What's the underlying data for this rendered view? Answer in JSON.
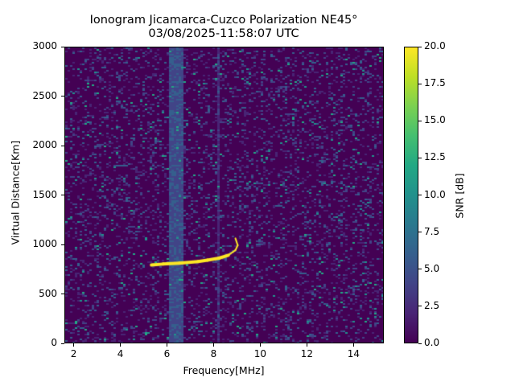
{
  "title_line1": "Ionogram Jicamarca-Cuzco Polarization NE45°",
  "title_line2": "03/08/2025-11:58:07 UTC",
  "x_axis": {
    "label": "Frequency[MHz]",
    "ticks": [
      "2",
      "4",
      "6",
      "8",
      "10",
      "12",
      "14"
    ],
    "range": [
      1.6,
      15.3
    ]
  },
  "y_axis": {
    "label": "Virtual Distance[Km]",
    "ticks": [
      "0",
      "500",
      "1000",
      "1500",
      "2000",
      "2500",
      "3000"
    ],
    "range": [
      0,
      3000
    ]
  },
  "colorbar": {
    "label": "SNR [dB]",
    "ticks": [
      "0.0",
      "2.5",
      "5.0",
      "7.5",
      "10.0",
      "12.5",
      "15.0",
      "17.5",
      "20.0"
    ],
    "range": [
      0,
      20
    ],
    "colormap": "viridis"
  },
  "chart_data": {
    "type": "heatmap",
    "title": "Ionogram Jicamarca-Cuzco Polarization NE45° 03/08/2025-11:58:07 UTC",
    "xlabel": "Frequency[MHz]",
    "ylabel": "Virtual Distance[Km]",
    "colorbar_label": "SNR [dB]",
    "xlim": [
      1.6,
      15.3
    ],
    "ylim": [
      0,
      3000
    ],
    "clim": [
      0,
      20
    ],
    "x_ticks": [
      2,
      4,
      6,
      8,
      10,
      12,
      14
    ],
    "y_ticks": [
      0,
      500,
      1000,
      1500,
      2000,
      2500,
      3000
    ],
    "c_ticks": [
      0.0,
      2.5,
      5.0,
      7.5,
      10.0,
      12.5,
      15.0,
      17.5,
      20.0
    ],
    "background_snr_db": 0.5,
    "interference_bands": [
      {
        "freq_mhz_start": 6.0,
        "freq_mhz_end": 6.6,
        "snr_db": 5
      },
      {
        "freq_mhz_start": 8.15,
        "freq_mhz_end": 8.25,
        "snr_db": 3
      }
    ],
    "echo_trace": {
      "snr_db": 20,
      "points": [
        {
          "freq_mhz": 5.3,
          "distance_km": 800
        },
        {
          "freq_mhz": 5.8,
          "distance_km": 810
        },
        {
          "freq_mhz": 6.5,
          "distance_km": 820
        },
        {
          "freq_mhz": 7.3,
          "distance_km": 835
        },
        {
          "freq_mhz": 7.7,
          "distance_km": 850
        },
        {
          "freq_mhz": 8.2,
          "distance_km": 870
        },
        {
          "freq_mhz": 8.6,
          "distance_km": 900
        },
        {
          "freq_mhz": 8.9,
          "distance_km": 950
        },
        {
          "freq_mhz": 9.0,
          "distance_km": 1000
        },
        {
          "freq_mhz": 8.9,
          "distance_km": 1070
        }
      ]
    }
  }
}
